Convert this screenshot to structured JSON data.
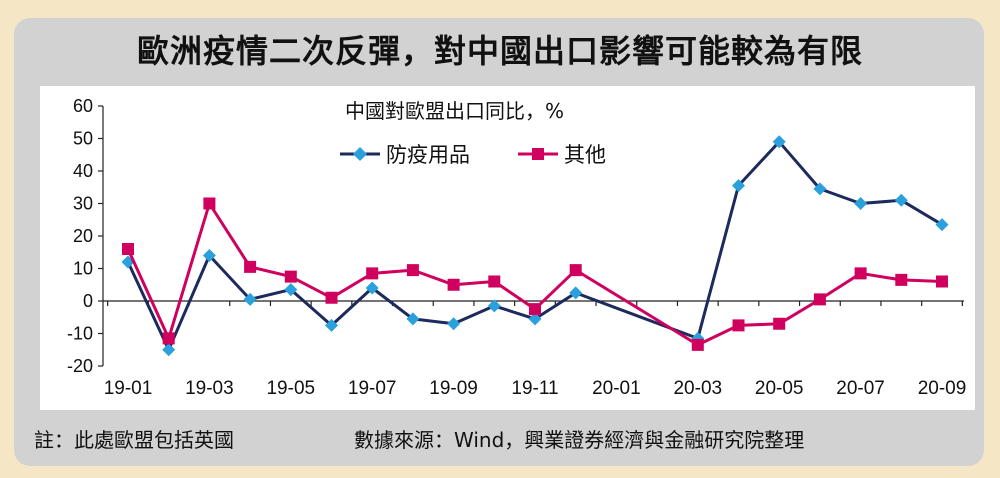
{
  "title": "歐洲疫情二次反彈，對中國出口影響可能較為有限",
  "footer": {
    "note": "註：此處歐盟包括英國",
    "source": "數據來源：Wind，興業證券經濟與金融研究院整理"
  },
  "colors": {
    "series_1": "#1c2a5c",
    "marker_1": "#2aa0dc",
    "series_2": "#d0005e",
    "marker_2": "#d0005e"
  },
  "chart_data": {
    "type": "line",
    "title": "中國對歐盟出口同比，%",
    "ylim": [
      -20,
      60
    ],
    "yticks": [
      60,
      50,
      40,
      30,
      20,
      10,
      0,
      -10,
      -20
    ],
    "x": [
      "19-01",
      "19-02",
      "19-03",
      "19-04",
      "19-05",
      "19-06",
      "19-07",
      "19-08",
      "19-09",
      "19-10",
      "19-11",
      "19-12",
      "20-01",
      "20-02",
      "20-03",
      "20-04",
      "20-05",
      "20-06",
      "20-07",
      "20-08",
      "20-09"
    ],
    "x_tick_labels": [
      "19-01",
      "19-03",
      "19-05",
      "19-07",
      "19-09",
      "19-11",
      "20-01",
      "20-03",
      "20-05",
      "20-07",
      "20-09"
    ],
    "series": [
      {
        "name": "防疫用品",
        "marker": "diamond",
        "values": [
          12,
          -15,
          14,
          0.5,
          3.5,
          -7.5,
          4,
          -5.5,
          -7,
          -1.5,
          -5.5,
          2.5,
          null,
          null,
          -11.5,
          35.5,
          49,
          34.5,
          30,
          31,
          23.5
        ]
      },
      {
        "name": "其他",
        "marker": "square",
        "values": [
          16,
          -11.5,
          30,
          10.5,
          7.5,
          1,
          8.5,
          9.5,
          5,
          6,
          -2.5,
          9.5,
          null,
          null,
          -13.5,
          -7.5,
          -7,
          0.5,
          8.5,
          6.5,
          6
        ]
      }
    ],
    "grid": false,
    "legend": "top-center"
  }
}
